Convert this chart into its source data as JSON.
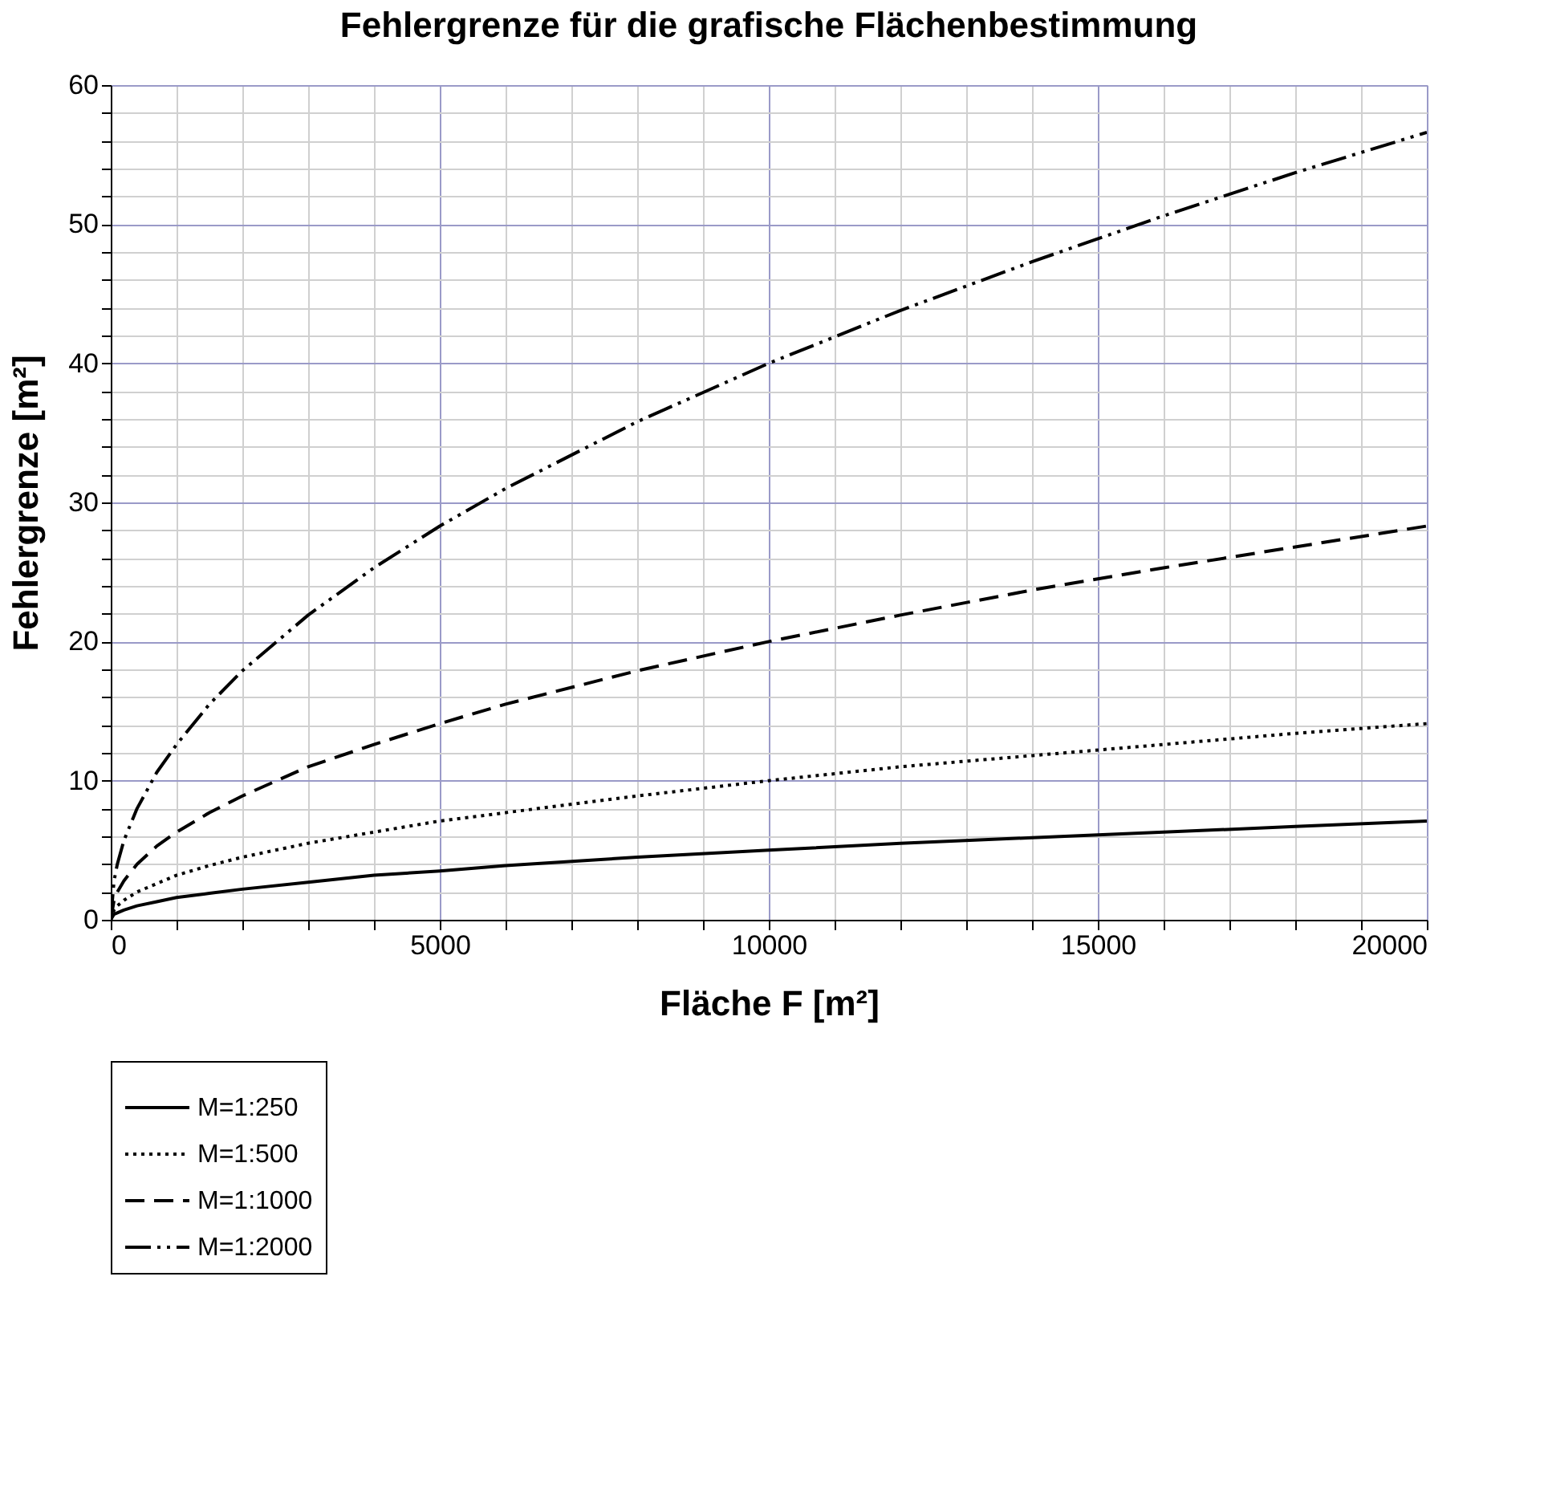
{
  "chart_data": {
    "type": "line",
    "title": "Fehlergrenze für die grafische Flächenbestimmung",
    "xlabel": "Fläche F [m²]",
    "ylabel": "Fehlergrenze [m²]",
    "x": [
      0,
      50,
      100,
      200,
      400,
      700,
      1000,
      1500,
      2000,
      3000,
      4000,
      5000,
      6000,
      8000,
      10000,
      12000,
      14000,
      16000,
      18000,
      20000
    ],
    "series": [
      {
        "name": "M=1:250",
        "color": "#000000",
        "line_style": "solid",
        "values": [
          0,
          0.4,
          0.5,
          0.7,
          1.0,
          1.3,
          1.6,
          1.9,
          2.2,
          2.7,
          3.2,
          3.5,
          3.9,
          4.5,
          5.0,
          5.5,
          5.9,
          6.3,
          6.7,
          7.1
        ]
      },
      {
        "name": "M=1:500",
        "color": "#000000",
        "line_style": "dotted",
        "values": [
          0,
          0.7,
          1.0,
          1.4,
          2.0,
          2.6,
          3.2,
          3.9,
          4.5,
          5.5,
          6.3,
          7.1,
          7.7,
          8.9,
          10.0,
          11.0,
          11.8,
          12.6,
          13.4,
          14.1
        ]
      },
      {
        "name": "M=1:1000",
        "color": "#000000",
        "line_style": "dashed",
        "values": [
          0,
          1.4,
          2.0,
          2.8,
          4.0,
          5.3,
          6.3,
          7.7,
          8.9,
          11.0,
          12.6,
          14.1,
          15.5,
          17.9,
          20.0,
          21.9,
          23.7,
          25.3,
          26.8,
          28.3
        ]
      },
      {
        "name": "M=1:2000",
        "color": "#000000",
        "line_style": "dashdotdot",
        "values": [
          0,
          2.8,
          4.0,
          5.7,
          8.0,
          10.6,
          12.6,
          15.5,
          17.9,
          21.9,
          25.3,
          28.3,
          31.0,
          35.8,
          40.0,
          43.8,
          47.3,
          50.6,
          53.7,
          56.6
        ]
      }
    ],
    "xlim": [
      0,
      20000
    ],
    "xticks": [
      0,
      {
        "value": 1000,
        "label": null
      },
      {
        "value": 2000,
        "label": null
      },
      {
        "value": 3000,
        "label": null
      },
      {
        "value": 4000,
        "label": null
      },
      5000,
      {
        "value": 6000,
        "label": null
      },
      {
        "value": 7000,
        "label": null
      },
      {
        "value": 8000,
        "label": null
      },
      {
        "value": 9000,
        "label": null
      },
      10000,
      {
        "value": 11000,
        "label": null
      },
      {
        "value": 12000,
        "label": null
      },
      {
        "value": 13000,
        "label": null
      },
      {
        "value": 14000,
        "label": null
      },
      15000,
      {
        "value": 16000,
        "label": null
      },
      {
        "value": 17000,
        "label": null
      },
      {
        "value": 18000,
        "label": null
      },
      {
        "value": 19000,
        "label": null
      },
      20000
    ],
    "ylim": [
      0,
      60
    ],
    "yticks": [
      0,
      {
        "value": 2,
        "label": null
      },
      {
        "value": 4,
        "label": null
      },
      {
        "value": 6,
        "label": null
      },
      {
        "value": 8,
        "label": null
      },
      10,
      {
        "value": 12,
        "label": null
      },
      {
        "value": 14,
        "label": null
      },
      {
        "value": 16,
        "label": null
      },
      {
        "value": 18,
        "label": null
      },
      20,
      {
        "value": 22,
        "label": null
      },
      {
        "value": 24,
        "label": null
      },
      {
        "value": 26,
        "label": null
      },
      {
        "value": 28,
        "label": null
      },
      30,
      {
        "value": 32,
        "label": null
      },
      {
        "value": 34,
        "label": null
      },
      {
        "value": 36,
        "label": null
      },
      {
        "value": 38,
        "label": null
      },
      40,
      {
        "value": 42,
        "label": null
      },
      {
        "value": 44,
        "label": null
      },
      {
        "value": 46,
        "label": null
      },
      {
        "value": 48,
        "label": null
      },
      50,
      {
        "value": 52,
        "label": null
      },
      {
        "value": 54,
        "label": null
      },
      {
        "value": 56,
        "label": null
      },
      {
        "value": 58,
        "label": null
      },
      60
    ],
    "grid": true,
    "legend": "bottom",
    "marker": "none"
  }
}
